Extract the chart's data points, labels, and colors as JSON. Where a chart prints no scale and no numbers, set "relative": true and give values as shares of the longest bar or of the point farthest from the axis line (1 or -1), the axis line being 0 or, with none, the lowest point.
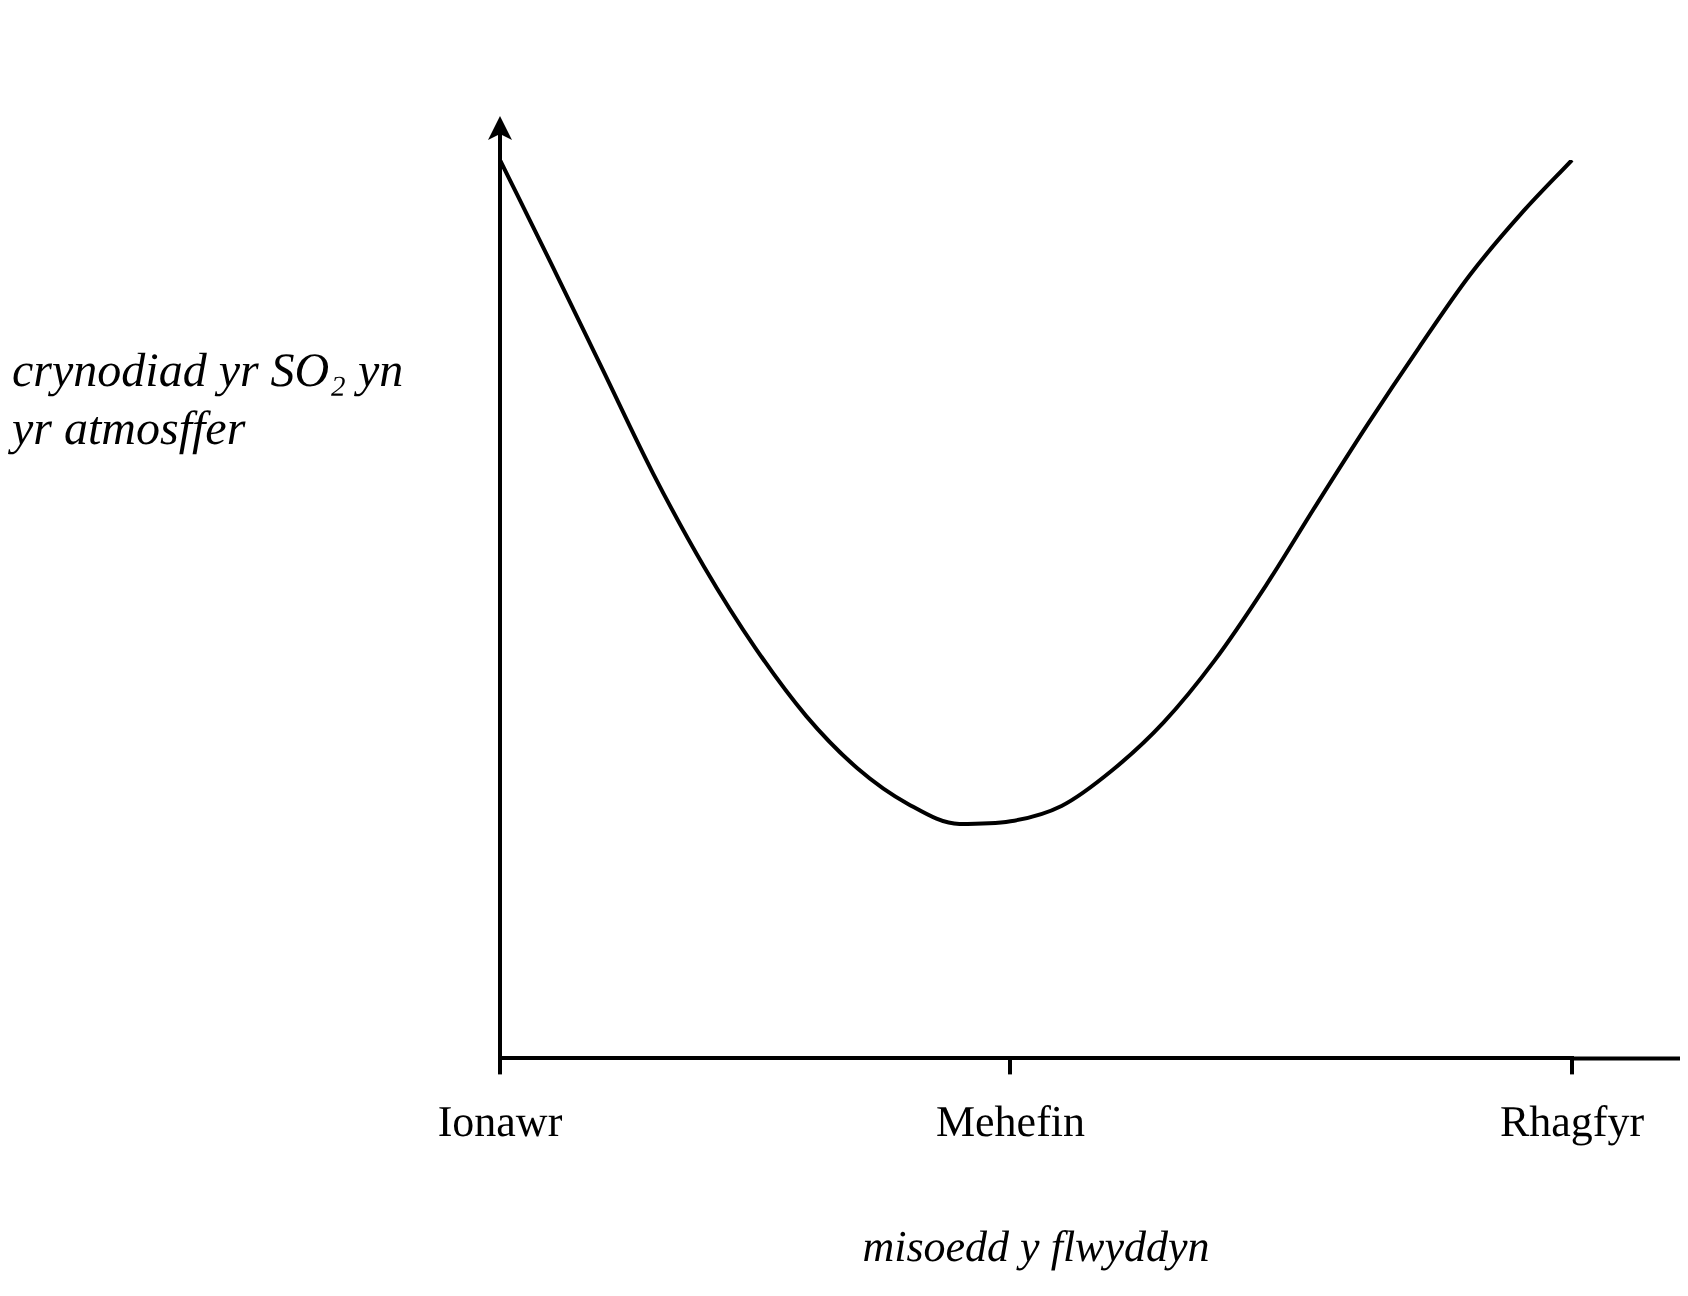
{
  "chart_data": {
    "type": "line",
    "relative": true,
    "xlabel": "misoedd y flwyddyn",
    "ylabel": "crynodiad yr SO₂ yn yr atmosffer",
    "categories": [
      "Ionawr",
      null,
      null,
      null,
      null,
      null,
      null,
      null,
      null,
      null,
      "Mehefin",
      null,
      null,
      null,
      null,
      null,
      null,
      null,
      null,
      null,
      null,
      "Rhagfyr"
    ],
    "grid": false,
    "legend": false,
    "marker": "none",
    "line_style": "solid",
    "series": [
      {
        "color": "#000000",
        "values": [
          1,
          0.885,
          0.768,
          0.651,
          0.547,
          0.457,
          0.381,
          0.323,
          0.283,
          0.261,
          0.264,
          0.281,
          0.321,
          0.374,
          0.443,
          0.526,
          0.617,
          0.706,
          0.791,
          0.872,
          0.94,
          1
        ]
      }
    ]
  }
}
